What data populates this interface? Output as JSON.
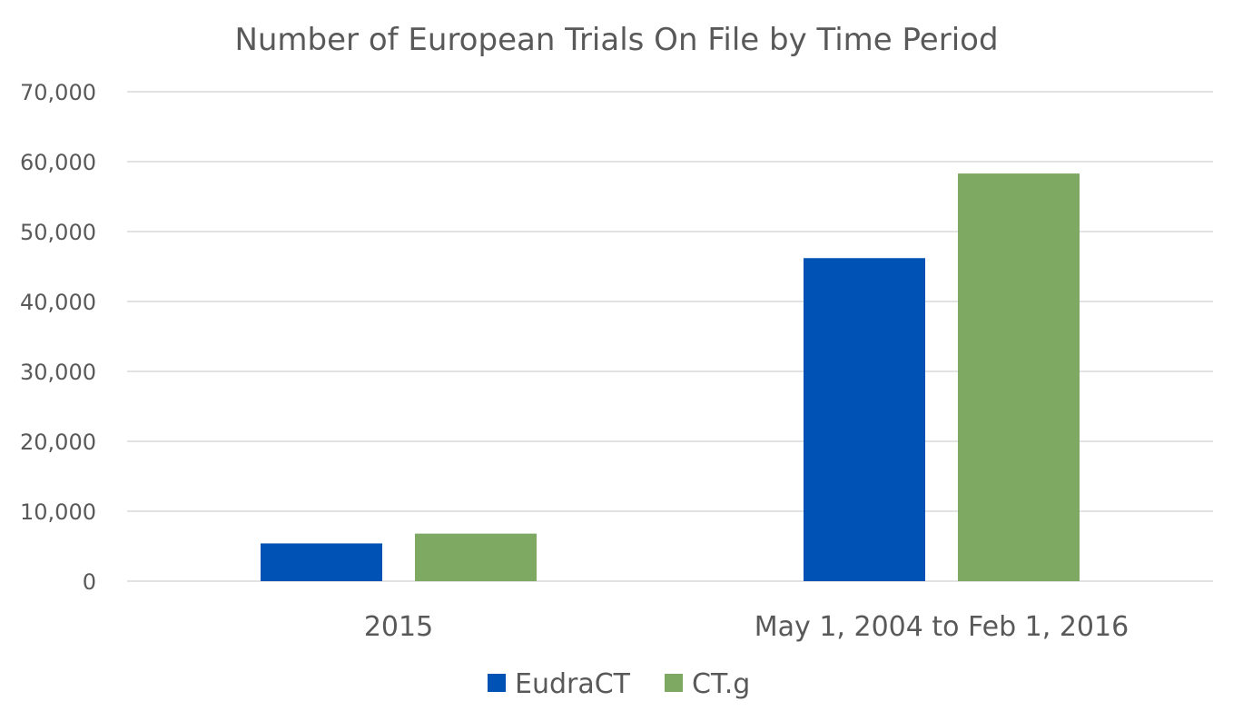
{
  "chart_data": {
    "type": "bar",
    "title": "Number of European Trials On File by Time Period",
    "categories": [
      "2015",
      "May 1, 2004 to Feb 1, 2016"
    ],
    "series": [
      {
        "name": "EudraCT",
        "values": [
          5400,
          46200
        ],
        "color": "#0052b4"
      },
      {
        "name": "CT.g",
        "values": [
          6800,
          58300
        ],
        "color": "#7da963"
      }
    ],
    "ylim": [
      0,
      70000
    ],
    "yticks": [
      "0",
      "10,000",
      "20,000",
      "30,000",
      "40,000",
      "50,000",
      "60,000",
      "70,000"
    ],
    "grid": true,
    "legend_position": "bottom"
  }
}
